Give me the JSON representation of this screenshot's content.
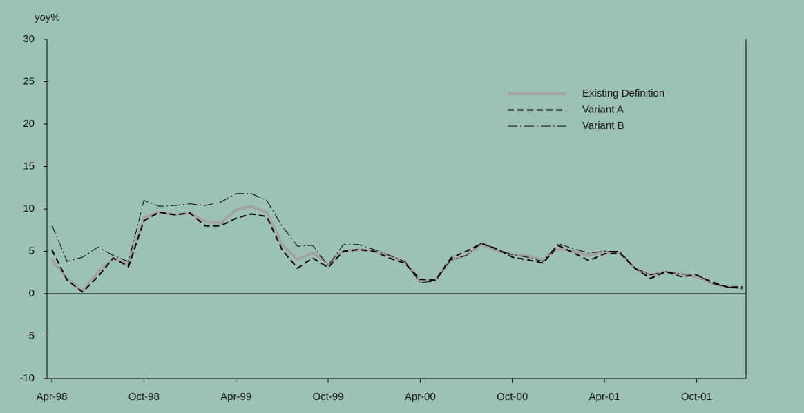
{
  "chart_data": {
    "type": "line",
    "y_label": "yoy%",
    "categories": [
      "Apr-98",
      null,
      null,
      null,
      null,
      null,
      "Oct-98",
      null,
      null,
      null,
      null,
      null,
      "Apr-99",
      null,
      null,
      null,
      null,
      null,
      "Oct-99",
      null,
      null,
      null,
      null,
      null,
      "Apr-00",
      null,
      null,
      null,
      null,
      null,
      "Oct-00",
      null,
      null,
      null,
      null,
      null,
      "Apr-01",
      null,
      null,
      null,
      null,
      null,
      "Oct-01",
      null,
      null,
      null
    ],
    "series": [
      {
        "name": "Existing Definition",
        "color": "#a3a3a3",
        "line_style": "solid",
        "values": [
          4.0,
          1.8,
          0.3,
          2.5,
          4.2,
          3.5,
          9.0,
          9.6,
          9.3,
          9.5,
          8.5,
          8.3,
          9.9,
          10.3,
          9.6,
          5.8,
          4.0,
          4.8,
          3.5,
          5.0,
          5.2,
          5.1,
          4.5,
          3.8,
          1.5,
          1.7,
          4.0,
          4.5,
          5.8,
          5.1,
          4.6,
          4.5,
          4.0,
          5.3,
          5.0,
          4.5,
          5.0,
          4.8,
          3.0,
          2.2,
          2.6,
          2.3,
          2.0,
          1.2,
          0.8,
          0.7
        ]
      },
      {
        "name": "Variant A",
        "color": "#000000",
        "line_style": "dashed",
        "values": [
          5.2,
          1.6,
          0.2,
          2.0,
          4.2,
          3.2,
          8.6,
          9.6,
          9.3,
          9.5,
          8.0,
          8.0,
          8.9,
          9.4,
          9.1,
          5.2,
          3.0,
          4.2,
          3.1,
          5.0,
          5.2,
          5.0,
          4.2,
          3.6,
          1.7,
          1.6,
          4.2,
          5.0,
          5.9,
          5.3,
          4.3,
          4.0,
          3.6,
          5.7,
          4.8,
          3.9,
          4.7,
          4.8,
          3.0,
          1.8,
          2.6,
          2.0,
          2.2,
          1.4,
          0.8,
          0.8
        ]
      },
      {
        "name": "Variant B",
        "color": "#000000",
        "line_style": "dashdot",
        "values": [
          8.1,
          3.8,
          4.3,
          5.5,
          4.5,
          3.8,
          11.0,
          10.3,
          10.4,
          10.6,
          10.4,
          10.8,
          11.8,
          11.8,
          11.0,
          8.0,
          5.6,
          5.7,
          3.3,
          5.8,
          5.8,
          5.2,
          4.5,
          3.8,
          1.3,
          1.5,
          4.0,
          4.5,
          6.0,
          5.2,
          4.6,
          4.3,
          3.8,
          5.9,
          5.3,
          4.8,
          5.0,
          5.0,
          3.0,
          2.2,
          2.6,
          2.3,
          2.3,
          1.2,
          0.8,
          0.6
        ]
      }
    ],
    "ylim": [
      -10,
      30
    ],
    "yticks": [
      -10,
      -5,
      0,
      5,
      10,
      15,
      20,
      25,
      30
    ],
    "legend": "upper right"
  }
}
